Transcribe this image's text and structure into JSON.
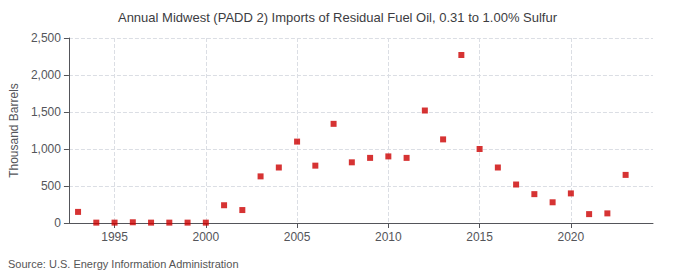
{
  "chart_data": {
    "type": "scatter",
    "title": "Annual Midwest (PADD 2) Imports of Residual Fuel Oil, 0.31 to 1.00% Sulfur",
    "ylabel": "Thousand Barrels",
    "annotations": [
      "Source: U.S. Energy Information Administration"
    ],
    "x": [
      1993,
      1994,
      1995,
      1996,
      1997,
      1998,
      1999,
      2000,
      2001,
      2002,
      2003,
      2004,
      2005,
      2006,
      2007,
      2008,
      2009,
      2010,
      2011,
      2012,
      2013,
      2014,
      2015,
      2016,
      2017,
      2018,
      2019,
      2020,
      2021,
      2022,
      2023
    ],
    "values": [
      150,
      5,
      5,
      10,
      5,
      5,
      5,
      5,
      240,
      175,
      630,
      750,
      1100,
      775,
      1340,
      820,
      880,
      900,
      880,
      1520,
      1130,
      2270,
      1000,
      750,
      520,
      390,
      280,
      400,
      120,
      130,
      650
    ],
    "color": "#cc0000",
    "marker": "square",
    "xlim": [
      1992.5,
      2024.5
    ],
    "xticks": [
      1995,
      2000,
      2005,
      2010,
      2015,
      2020
    ],
    "ylim": [
      0,
      2500
    ],
    "yticks": [
      0,
      500,
      {
        "value": 1000,
        "label": "1,000"
      },
      {
        "value": 1500,
        "label": "1,500"
      },
      {
        "value": 2000,
        "label": "2,000"
      },
      {
        "value": 2500,
        "label": "2,500"
      }
    ],
    "grid": true
  }
}
